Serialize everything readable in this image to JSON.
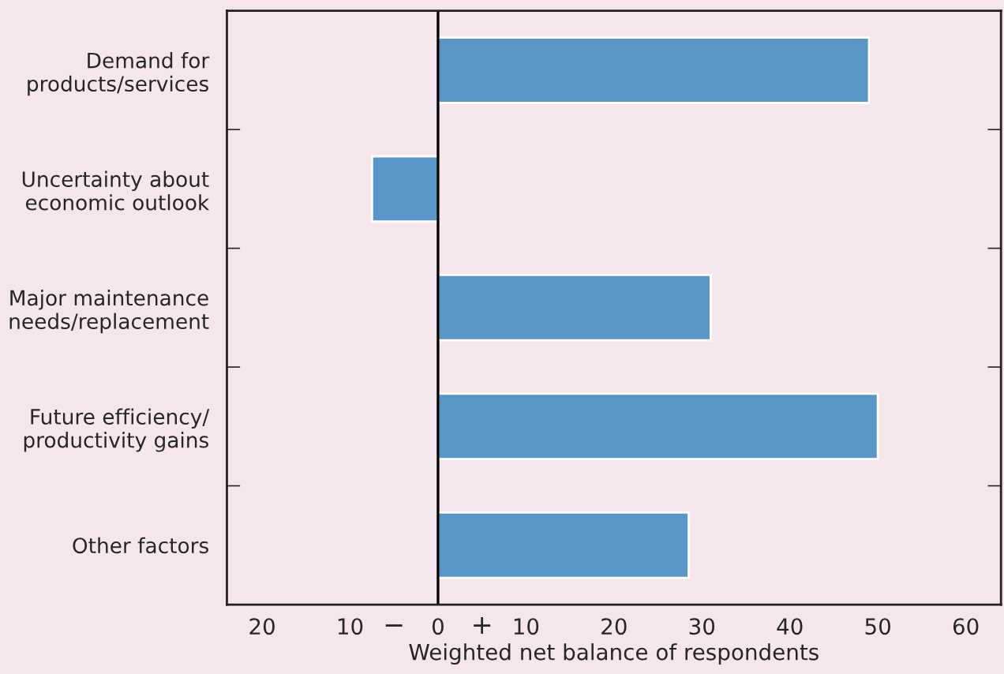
{
  "chart_data": {
    "type": "bar",
    "orientation": "horizontal",
    "xlabel": "Weighted net balance of respondents",
    "categories": [
      "Demand for\nproducts/services",
      "Uncertainty about\neconomic outlook",
      "Major maintenance\nneeds/replacement",
      "Future efficiency/\nproductivity gains",
      "Other factors"
    ],
    "values": [
      49,
      -7.5,
      31,
      50,
      28.5
    ],
    "color": "#5896c8",
    "xlim": [
      -24,
      64
    ],
    "xticks": [
      {
        "value": -20,
        "label": "20"
      },
      {
        "value": -10,
        "label": "10"
      },
      0,
      10,
      20,
      30,
      40,
      50,
      60
    ],
    "annotations": [
      "−",
      "+"
    ],
    "ref_lines": [
      {
        "axis": "x",
        "value": 0,
        "label": null,
        "color": "#000000"
      }
    ],
    "grid": false,
    "legend": false
  }
}
